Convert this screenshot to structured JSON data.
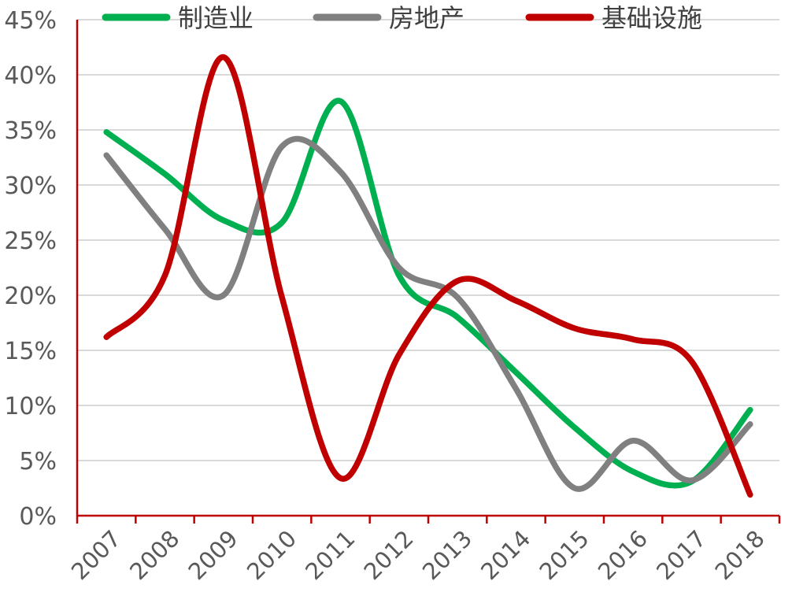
{
  "chart_data": {
    "type": "line",
    "title": "",
    "xlabel": "",
    "ylabel": "",
    "categories": [
      "2007",
      "2008",
      "2009",
      "2010",
      "2011",
      "2012",
      "2013",
      "2014",
      "2015",
      "2016",
      "2017",
      "2018"
    ],
    "ylim": [
      0,
      45
    ],
    "yticks": [
      0,
      5,
      10,
      15,
      20,
      25,
      30,
      35,
      40,
      45
    ],
    "ytick_labels": [
      "0%",
      "5%",
      "10%",
      "15%",
      "20%",
      "25%",
      "30%",
      "35%",
      "40%",
      "45%"
    ],
    "grid": true,
    "smooth": true,
    "legend_position": "top",
    "series": [
      {
        "name": "制造业",
        "color": "#00b050",
        "values": [
          34.8,
          31.0,
          26.8,
          26.6,
          37.6,
          21.8,
          18.0,
          13.0,
          8.0,
          4.0,
          3.1,
          9.6
        ]
      },
      {
        "name": "房地产",
        "color": "#808080",
        "values": [
          32.7,
          26.0,
          20.0,
          33.5,
          31.2,
          22.5,
          19.8,
          11.5,
          2.5,
          6.8,
          3.2,
          8.3
        ]
      },
      {
        "name": "基础设施",
        "color": "#c00000",
        "values": [
          16.2,
          21.8,
          41.6,
          19.8,
          3.4,
          14.6,
          21.3,
          19.5,
          17.0,
          16.0,
          14.0,
          1.9
        ]
      }
    ],
    "colors": {
      "axis": "#c00000",
      "grid": "#d9d9d9",
      "text": "#595959"
    }
  }
}
